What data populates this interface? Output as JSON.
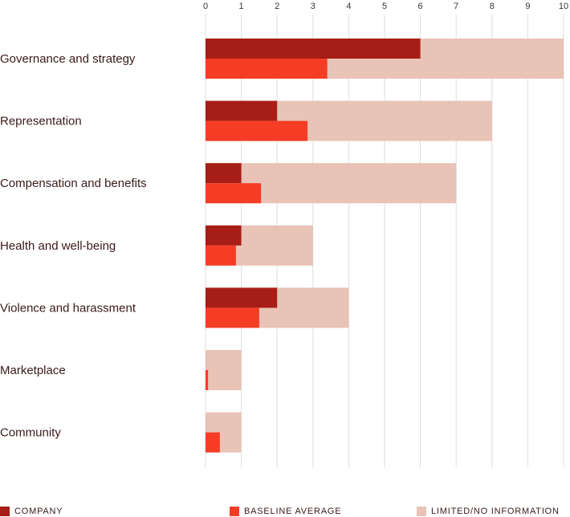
{
  "chart_data": {
    "type": "bar",
    "orientation": "horizontal",
    "title": "",
    "xlabel": "",
    "ylabel": "",
    "xlim": [
      0,
      10
    ],
    "x_ticks": [
      "0",
      "1",
      "2",
      "3",
      "4",
      "5",
      "6",
      "7",
      "8",
      "9",
      "10"
    ],
    "grid": true,
    "categories": [
      "Governance and strategy",
      "Representation",
      "Compensation and benefits",
      "Health and well-being",
      "Violence and harassment",
      "Marketplace",
      "Community"
    ],
    "series": [
      {
        "name": "LIMITED/NO INFORMATION",
        "color": "#e8c3b6",
        "values": [
          10,
          8,
          7,
          3,
          4,
          1,
          1
        ]
      },
      {
        "name": "COMPANY",
        "color": "#a61e16",
        "values": [
          6,
          2,
          1,
          1,
          2,
          0,
          0
        ]
      },
      {
        "name": "BASELINE AVERAGE",
        "color": "#f53d26",
        "values": [
          3.4,
          2.85,
          1.55,
          0.85,
          1.5,
          0.07,
          0.4
        ]
      }
    ],
    "legend_position": "bottom"
  },
  "legend": {
    "company_label": "COMPANY",
    "baseline_label": "BASELINE AVERAGE",
    "limited_label": "LIMITED/NO INFORMATION"
  }
}
